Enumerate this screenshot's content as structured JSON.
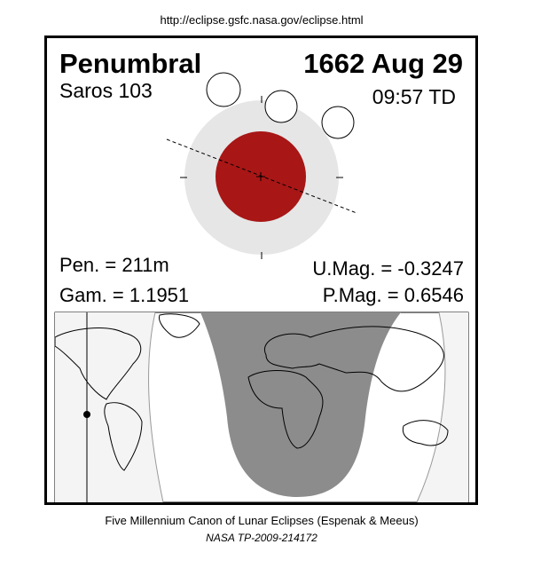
{
  "url": "http://eclipse.gsfc.nasa.gov/eclipse.html",
  "header": {
    "type": "Penumbral",
    "date": "1662 Aug 29",
    "saros": "Saros 103",
    "time": "09:57 TD"
  },
  "parameters": {
    "pen": "Pen. = 211m",
    "gam": "Gam. = 1.1951",
    "umag": "U.Mag. = -0.3247",
    "pmag": "P.Mag. = 0.6546"
  },
  "footer": {
    "line1": "Five Millennium Canon of Lunar Eclipses (Espenak & Meeus)",
    "line2": "NASA TP-2009-214172"
  }
}
